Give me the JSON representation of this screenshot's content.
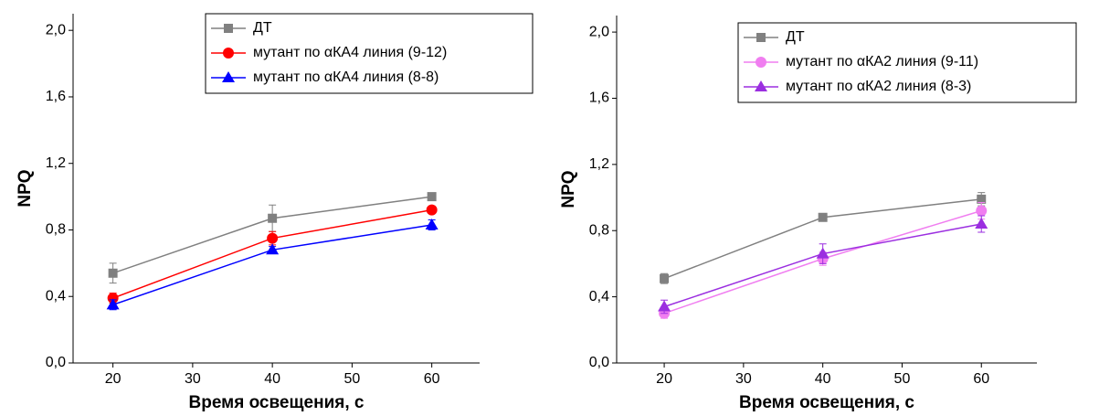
{
  "chart_data": [
    {
      "type": "line",
      "xlabel": "Время освещения, с",
      "ylabel": "NPQ",
      "xlim": [
        15,
        66
      ],
      "xticks": [
        20,
        30,
        40,
        50,
        60
      ],
      "ylim": [
        0,
        2.1
      ],
      "yticks": [
        {
          "value": 0,
          "label": "0,0"
        },
        {
          "value": 0.4,
          "label": "0,4"
        },
        {
          "value": 0.8,
          "label": "0,8"
        },
        {
          "value": 1.2,
          "label": "1,2"
        },
        {
          "value": 1.6,
          "label": "1,6"
        },
        {
          "value": 2.0,
          "label": "2,0"
        }
      ],
      "legend": "upper-right",
      "series": [
        {
          "name": "ДТ",
          "color": "#808080",
          "marker": "square",
          "x": [
            20,
            40,
            60
          ],
          "values": [
            0.54,
            0.87,
            1.0
          ],
          "errors": [
            0.06,
            0.08,
            0.02
          ]
        },
        {
          "name": "мутант по αКА4 линия (9-12)",
          "color": "#ff0000",
          "marker": "circle",
          "x": [
            20,
            40,
            60
          ],
          "values": [
            0.39,
            0.75,
            0.92
          ],
          "errors": [
            0.03,
            0.04,
            0.02
          ]
        },
        {
          "name": "мутант по αКА4 линия (8-8)",
          "color": "#0000ff",
          "marker": "triangle",
          "x": [
            20,
            40,
            60
          ],
          "values": [
            0.35,
            0.68,
            0.83
          ],
          "errors": [
            0.03,
            0.02,
            0.03
          ]
        }
      ]
    },
    {
      "type": "line",
      "xlabel": "Время освещения, с",
      "ylabel": "NPQ",
      "xlim": [
        14,
        67
      ],
      "xticks": [
        20,
        30,
        40,
        50,
        60
      ],
      "ylim": [
        0,
        2.1
      ],
      "yticks": [
        {
          "value": 0,
          "label": "0,0"
        },
        {
          "value": 0.4,
          "label": "0,4"
        },
        {
          "value": 0.8,
          "label": "0,8"
        },
        {
          "value": 1.2,
          "label": "1,2"
        },
        {
          "value": 1.6,
          "label": "1,6"
        },
        {
          "value": 2.0,
          "label": "2,0"
        }
      ],
      "legend": "upper-right",
      "series": [
        {
          "name": "ДТ",
          "color": "#808080",
          "marker": "square",
          "x": [
            20,
            40,
            60
          ],
          "values": [
            0.51,
            0.88,
            0.99
          ],
          "errors": [
            0.03,
            0.02,
            0.04
          ]
        },
        {
          "name": "мутант по αКА2 линия (9-11)",
          "color": "#f07ef0",
          "marker": "circle",
          "x": [
            20,
            40,
            60
          ],
          "values": [
            0.3,
            0.63,
            0.92
          ],
          "errors": [
            0.03,
            0.04,
            0.05
          ]
        },
        {
          "name": "мутант по αКА2 линия (8-3)",
          "color": "#9b2fe0",
          "marker": "triangle",
          "x": [
            20,
            40,
            60
          ],
          "values": [
            0.34,
            0.66,
            0.84
          ],
          "errors": [
            0.04,
            0.06,
            0.05
          ]
        }
      ]
    }
  ]
}
